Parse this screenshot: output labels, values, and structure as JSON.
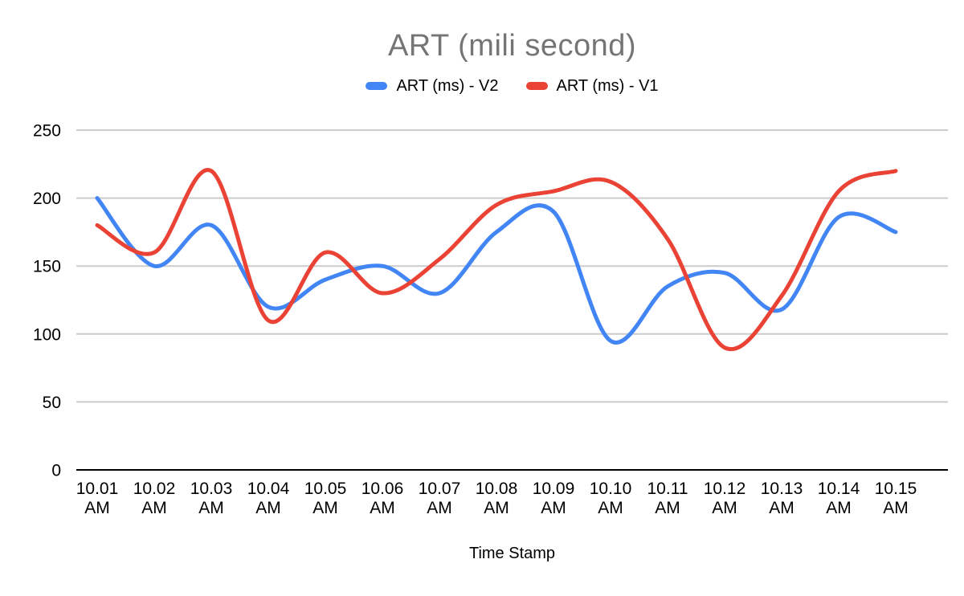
{
  "colors": {
    "background": "#ffffff",
    "title_text": "#757575",
    "axis_text": "#000000",
    "gridline": "#cccccc",
    "baseline": "#000000",
    "series_v2_blue": "#4285F4",
    "series_v1_red": "#EA4335"
  },
  "chart_data": {
    "type": "line",
    "title": "ART (mili second)",
    "xlabel": "Time Stamp",
    "ylabel": "",
    "ylim": [
      0,
      250
    ],
    "y_ticks": [
      0,
      50,
      100,
      150,
      200,
      250
    ],
    "grid": true,
    "legend_position": "top",
    "line_style": "smooth",
    "categories": [
      "10.01 AM",
      "10.02 AM",
      "10.03 AM",
      "10.04 AM",
      "10.05 AM",
      "10.06 AM",
      "10.07 AM",
      "10.08 AM",
      "10.09 AM",
      "10.10 AM",
      "10.11 AM",
      "10.12 AM",
      "10.13 AM",
      "10.14 AM",
      "10.15 AM"
    ],
    "series": [
      {
        "name": "ART (ms) - V2",
        "color": "#4285F4",
        "values": [
          200,
          150,
          180,
          120,
          140,
          150,
          130,
          175,
          190,
          95,
          135,
          145,
          118,
          186,
          175
        ]
      },
      {
        "name": "ART (ms) - V1",
        "color": "#EA4335",
        "values": [
          180,
          160,
          220,
          110,
          160,
          130,
          155,
          195,
          205,
          212,
          170,
          90,
          128,
          205,
          220
        ]
      }
    ]
  }
}
